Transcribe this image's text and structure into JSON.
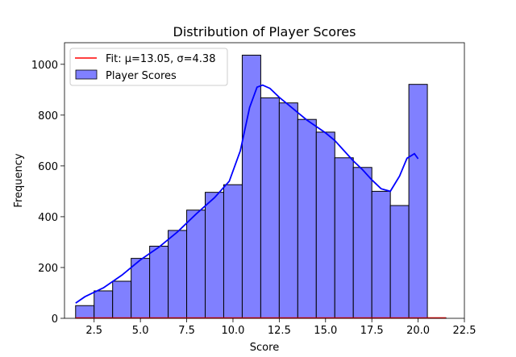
{
  "chart_data": {
    "type": "bar",
    "title": "Distribution of Player Scores",
    "xlabel": "Score",
    "ylabel": "Frequency",
    "xlim": [
      0.9,
      22.5
    ],
    "ylim": [
      0,
      1085
    ],
    "xticks": [
      2.5,
      5.0,
      7.5,
      10.0,
      12.5,
      15.0,
      17.5,
      20.0,
      22.5
    ],
    "xtick_labels": [
      "2.5",
      "5.0",
      "7.5",
      "10.0",
      "12.5",
      "15.0",
      "17.5",
      "20.0",
      "22.5"
    ],
    "yticks": [
      0,
      200,
      400,
      600,
      800,
      1000
    ],
    "ytick_labels": [
      "0",
      "200",
      "400",
      "600",
      "800",
      "1000"
    ],
    "grid": false,
    "legend_placement": "top-left",
    "series": [
      {
        "name": "Player Scores",
        "kind": "histogram",
        "color": "#8080ff",
        "edge_color": "#000000",
        "bin_edges": [
          1.5,
          2.5,
          3.5,
          4.5,
          5.5,
          6.5,
          7.5,
          8.5,
          9.5,
          10.5,
          11.5,
          12.5,
          13.5,
          14.5,
          15.5,
          16.5,
          17.5,
          18.5,
          19.5,
          20.5,
          21.5
        ],
        "values": [
          50,
          108,
          146,
          236,
          284,
          346,
          426,
          496,
          526,
          1036,
          868,
          848,
          783,
          733,
          632,
          594,
          500,
          444,
          921,
          2
        ]
      },
      {
        "name": "",
        "kind": "kde",
        "color": "#0000ff",
        "x": [
          1.5,
          2.0,
          3.0,
          4.0,
          5.0,
          6.0,
          7.0,
          8.0,
          9.0,
          9.8,
          10.4,
          10.9,
          11.3,
          11.6,
          12.0,
          12.5,
          13.0,
          13.5,
          14.0,
          14.5,
          15.0,
          15.5,
          16.0,
          16.5,
          17.0,
          17.5,
          18.0,
          18.5,
          19.0,
          19.4,
          19.8,
          20.0
        ],
        "y": [
          60,
          85,
          120,
          170,
          230,
          280,
          340,
          410,
          475,
          540,
          660,
          830,
          910,
          918,
          905,
          870,
          840,
          810,
          780,
          755,
          730,
          700,
          660,
          620,
          585,
          545,
          510,
          500,
          560,
          630,
          648,
          628
        ]
      },
      {
        "name": "Fit: μ=13.05, σ=4.38",
        "kind": "fit",
        "color": "#ff0000",
        "x": [
          1.5,
          21.5
        ],
        "y": [
          0,
          0
        ]
      }
    ]
  }
}
